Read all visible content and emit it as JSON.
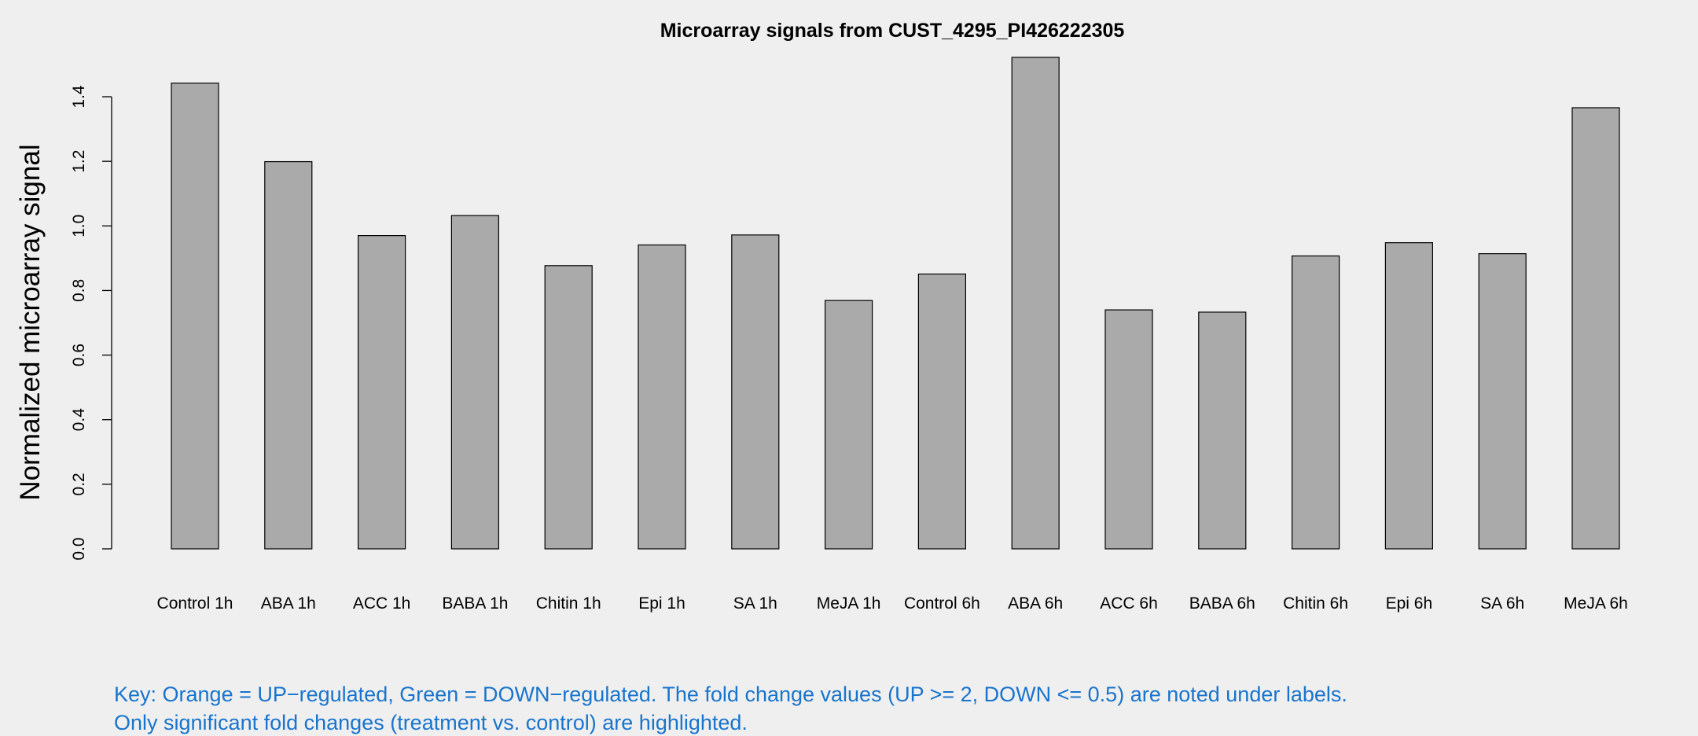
{
  "chart_data": {
    "type": "bar",
    "title": "Microarray signals from CUST_4295_PI426222305",
    "xlabel": "",
    "ylabel": "Normalized microarray signal",
    "ylim": [
      0,
      1.5
    ],
    "yticks": [
      "0.0",
      "0.2",
      "0.4",
      "0.6",
      "0.8",
      "1.0",
      "1.2",
      "1.4"
    ],
    "grid": false,
    "categories": [
      "Control 1h",
      "ABA 1h",
      "ACC 1h",
      "BABA 1h",
      "Chitin 1h",
      "Epi 1h",
      "SA 1h",
      "MeJA 1h",
      "Control 6h",
      "ABA 6h",
      "ACC 6h",
      "BABA 6h",
      "Chitin 6h",
      "Epi 6h",
      "SA 6h",
      "MeJA 6h"
    ],
    "values": [
      1.442,
      1.199,
      0.97,
      1.032,
      0.877,
      0.941,
      0.972,
      0.769,
      0.851,
      1.522,
      0.74,
      0.733,
      0.907,
      0.948,
      0.914,
      1.366
    ],
    "bar_color": "#aaaaaa",
    "key_lines": [
      "Key: Orange = UP−regulated, Green = DOWN−regulated. The fold change values (UP >= 2, DOWN <= 0.5) are noted under labels.",
      "Only significant fold changes (treatment vs. control) are highlighted."
    ],
    "key_color": "#1874cd"
  }
}
